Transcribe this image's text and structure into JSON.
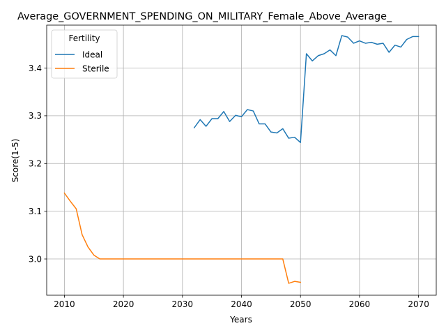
{
  "chart_data": {
    "type": "line",
    "title": "Average_GOVERNMENT_SPENDING_ON_MILITARY_Female_Above_Average_",
    "xlabel": "Years",
    "ylabel": "Score(1-5)",
    "xlim": [
      2007,
      2073
    ],
    "ylim": [
      2.924,
      3.49
    ],
    "xticks": [
      2010,
      2020,
      2030,
      2040,
      2050,
      2060,
      2070
    ],
    "yticks": [
      3.0,
      3.1,
      3.2,
      3.3,
      3.4
    ],
    "ytick_labels": [
      "3.0",
      "3.1",
      "3.2",
      "3.3",
      "3.4"
    ],
    "grid": true,
    "legend": {
      "title": "Fertility",
      "placement": "top-left"
    },
    "series": [
      {
        "name": "Ideal",
        "color": "#1f77b4",
        "x": [
          2032,
          2033,
          2034,
          2035,
          2036,
          2037,
          2038,
          2039,
          2040,
          2041,
          2042,
          2043,
          2044,
          2045,
          2046,
          2047,
          2048,
          2049,
          2050,
          2051,
          2052,
          2053,
          2054,
          2055,
          2056,
          2057,
          2058,
          2059,
          2060,
          2061,
          2062,
          2063,
          2064,
          2065,
          2066,
          2067,
          2068,
          2069,
          2070
        ],
        "y": [
          3.275,
          3.292,
          3.278,
          3.294,
          3.294,
          3.309,
          3.288,
          3.301,
          3.298,
          3.313,
          3.31,
          3.283,
          3.283,
          3.266,
          3.264,
          3.273,
          3.253,
          3.255,
          3.244,
          3.43,
          3.415,
          3.426,
          3.43,
          3.438,
          3.426,
          3.468,
          3.465,
          3.452,
          3.457,
          3.452,
          3.454,
          3.45,
          3.452,
          3.433,
          3.448,
          3.444,
          3.46,
          3.466,
          3.466
        ]
      },
      {
        "name": "Sterile",
        "color": "#ff7f0e",
        "x": [
          2010,
          2011,
          2012,
          2013,
          2014,
          2015,
          2016,
          2017,
          2018,
          2019,
          2020,
          2021,
          2022,
          2023,
          2024,
          2025,
          2026,
          2027,
          2028,
          2029,
          2030,
          2031,
          2032,
          2033,
          2034,
          2035,
          2036,
          2037,
          2038,
          2039,
          2040,
          2041,
          2042,
          2043,
          2044,
          2045,
          2046,
          2047,
          2048,
          2049,
          2050
        ],
        "y": [
          3.138,
          3.121,
          3.105,
          3.051,
          3.025,
          3.008,
          3.0,
          3.0,
          3.0,
          3.0,
          3.0,
          3.0,
          3.0,
          3.0,
          3.0,
          3.0,
          3.0,
          3.0,
          3.0,
          3.0,
          3.0,
          3.0,
          3.0,
          3.0,
          3.0,
          3.0,
          3.0,
          3.0,
          3.0,
          3.0,
          3.0,
          3.0,
          3.0,
          3.0,
          3.0,
          3.0,
          3.0,
          3.0,
          2.949,
          2.953,
          2.951
        ]
      }
    ]
  }
}
